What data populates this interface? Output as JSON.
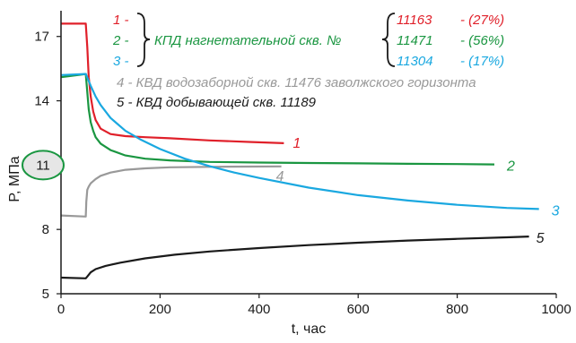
{
  "chart_data": {
    "type": "line",
    "xlabel": "t, час",
    "ylabel": "P, МПа",
    "xlim": [
      0,
      1000
    ],
    "ylim": [
      5,
      18.2
    ],
    "x_ticks": [
      0,
      200,
      400,
      600,
      800,
      1000
    ],
    "y_ticks": [
      5,
      8,
      11,
      14,
      17
    ],
    "grid": false,
    "highlight": {
      "y_tick": 11,
      "color": "#1a9641"
    },
    "series": [
      {
        "name": "1",
        "label": "1",
        "color": "#e0202a",
        "x": [
          0,
          50,
          53,
          56,
          60,
          65,
          70,
          80,
          100,
          130,
          170,
          220,
          300,
          380,
          450
        ],
        "y": [
          17.6,
          17.6,
          16.5,
          15.1,
          14.2,
          13.5,
          13.1,
          12.7,
          12.45,
          12.35,
          12.3,
          12.25,
          12.15,
          12.08,
          12.02
        ]
      },
      {
        "name": "2",
        "label": "2",
        "color": "#1a9641",
        "x": [
          0,
          50,
          53,
          56,
          60,
          65,
          70,
          80,
          100,
          130,
          170,
          220,
          300,
          400,
          500,
          600,
          700,
          800,
          875
        ],
        "y": [
          15.1,
          15.25,
          14.4,
          13.6,
          13.0,
          12.6,
          12.3,
          12.0,
          11.7,
          11.45,
          11.3,
          11.22,
          11.15,
          11.12,
          11.1,
          11.08,
          11.06,
          11.05,
          11.03
        ]
      },
      {
        "name": "3",
        "label": "3",
        "color": "#1aa8e0",
        "x": [
          0,
          50,
          60,
          70,
          80,
          100,
          130,
          160,
          200,
          250,
          300,
          350,
          400,
          500,
          600,
          700,
          800,
          900,
          965
        ],
        "y": [
          15.2,
          15.25,
          14.7,
          14.2,
          13.8,
          13.2,
          12.6,
          12.2,
          11.75,
          11.3,
          10.95,
          10.65,
          10.4,
          9.95,
          9.6,
          9.35,
          9.15,
          9.0,
          8.95
        ]
      },
      {
        "name": "4",
        "label": "4",
        "color": "#999999",
        "x": [
          0,
          50,
          51,
          53,
          56,
          60,
          70,
          80,
          100,
          130,
          170,
          220,
          300,
          380,
          445
        ],
        "y": [
          8.65,
          8.6,
          9.3,
          9.85,
          10.0,
          10.15,
          10.35,
          10.5,
          10.65,
          10.78,
          10.85,
          10.9,
          10.92,
          10.93,
          10.94
        ]
      },
      {
        "name": "5",
        "label": "5",
        "color": "#1a1a1a",
        "x": [
          0,
          50,
          53,
          60,
          70,
          90,
          120,
          170,
          230,
          300,
          400,
          500,
          600,
          700,
          800,
          900,
          945
        ],
        "y": [
          5.75,
          5.72,
          5.8,
          6.0,
          6.15,
          6.3,
          6.45,
          6.65,
          6.82,
          6.97,
          7.13,
          7.27,
          7.38,
          7.48,
          7.56,
          7.63,
          7.67
        ]
      }
    ],
    "legend": {
      "placement": "top",
      "kpd_rows": [
        {
          "num": "1 -",
          "well": "11163",
          "pct": "- (27%)",
          "color": "#e0202a"
        },
        {
          "num": "2 -",
          "well": "11471",
          "pct": "- (56%)",
          "color": "#1a9641"
        },
        {
          "num": "3 -",
          "well": "11304",
          "pct": "- (17%)",
          "color": "#1aa8e0"
        }
      ],
      "kpd_text": "КПД нагнетательной скв. №",
      "kpd_text_color": "#1a9641",
      "row4": {
        "text": "4 - КВД водозаборной скв. 11476  заволжского горизонта",
        "color": "#999999"
      },
      "row5": {
        "text": "5 - КВД добывающей скв. 11189",
        "color": "#1a1a1a"
      }
    }
  }
}
